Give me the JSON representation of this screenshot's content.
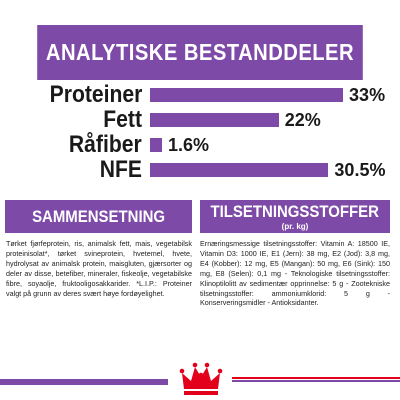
{
  "header": {
    "title": "ANALYTISKE BESTANDDELER"
  },
  "analysis": [
    {
      "label": "Proteiner",
      "value": 33,
      "display": "33%"
    },
    {
      "label": "Fett",
      "value": 22,
      "display": "22%"
    },
    {
      "label": "Råfiber",
      "value": 1.6,
      "display": "1.6%"
    },
    {
      "label": "NFE",
      "value": 30.5,
      "display": "30.5%"
    }
  ],
  "composition": {
    "title": "SAMMENSETNING",
    "text": "Tørket fjørfeprotein, ris, animalsk fett, mais, vegetabilsk proteinisolat*, tørket svineprotein, hvetemel, hvete, hydrolysat av animalsk protein, maisgluten, gjærsorter og deler av disse, betefiber, mineraler, fiskeolje, vegetabilske fibre, soyaolje, fruktooligosakkarider. *L.I.P.: Proteiner valgt på grunn av deres svært høye fordøyelighet."
  },
  "additives": {
    "title": "TILSETNINGSSTOFFER",
    "subtitle": "(pr. kg)",
    "text": "Ernæringsmessige tilsetningsstoffer: Vitamin A: 18500 IE, Vitamin D3: 1000 IE, E1 (Jern): 38 mg, E2 (Jod): 3,8 mg, E4 (Kobber): 12 mg, E5 (Mangan): 50 mg, E6 (Sink): 150 mg, E8 (Selen): 0,1 mg - Teknologiske tilsetningsstoffer: Klinoptilolitt av sedimentær opprinnelse: 5 g - Zootekniske tilsetningsstoffer: ammoniumklorid: 5 g - Konserveringsmidler - Antioksidanter."
  },
  "logo": {
    "icon": "royal-canin-crown-icon"
  },
  "colors": {
    "accent": "#7e4aa8",
    "red": "#e3001b"
  }
}
